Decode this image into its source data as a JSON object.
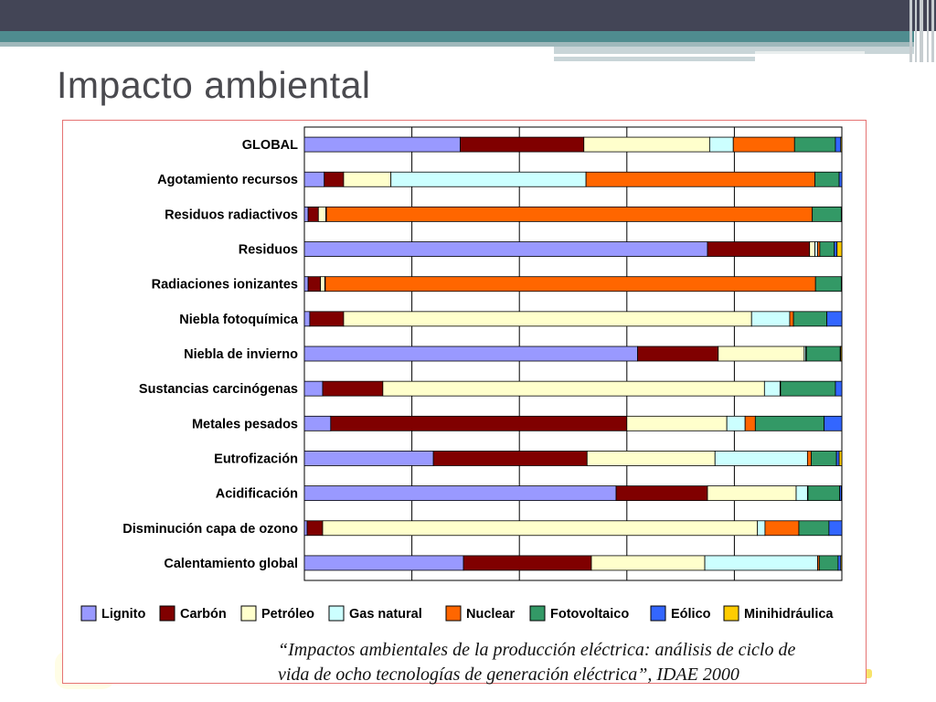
{
  "slide": {
    "title": "Impacto ambiental",
    "citation_line1": "“Impactos ambientales de la producción eléctrica: análisis de ciclo de",
    "citation_line2": "vida de ocho tecnologías de generación eléctrica”, IDAE 2000"
  },
  "chart_data": {
    "type": "bar",
    "orientation": "horizontal",
    "stacked": true,
    "normalized": "100%",
    "grid": true,
    "legend_position": "bottom",
    "categories": [
      "GLOBAL",
      "Agotamiento recursos",
      "Residuos radiactivos",
      "Residuos",
      "Radiaciones ionizantes",
      "Niebla fotoquímica",
      "Niebla de invierno",
      "Sustancias carcinógenas",
      "Metales pesados",
      "Eutrofización",
      "Acidificación",
      "Disminución capa de ozono",
      "Calentamiento global"
    ],
    "series": [
      {
        "name": "Lignito",
        "color": "#9999ff",
        "values": [
          29,
          3.7,
          0.7,
          75,
          0.7,
          1,
          62,
          3.4,
          4.9,
          24,
          58,
          0.5,
          29.6
        ]
      },
      {
        "name": "Carbón",
        "color": "#800000",
        "values": [
          23,
          3.6,
          1.9,
          19,
          2.3,
          6.3,
          15,
          11.2,
          55.1,
          28.6,
          17,
          2.9,
          23.8
        ]
      },
      {
        "name": "Petróleo",
        "color": "#ffffcc",
        "values": [
          23.4,
          8.8,
          1.4,
          1,
          0.8,
          75.9,
          16,
          71,
          18.6,
          23.8,
          16.5,
          80.9,
          21.1
        ]
      },
      {
        "name": "Gas natural",
        "color": "#ccffff",
        "values": [
          4.4,
          36.3,
          0.1,
          0.5,
          0.1,
          7.1,
          0.3,
          2.9,
          3.4,
          17.2,
          2.1,
          1.4,
          21
        ]
      },
      {
        "name": "Nuclear",
        "color": "#ff6600",
        "values": [
          11.4,
          42.6,
          90.4,
          0.4,
          91.2,
          0.7,
          0.1,
          0.1,
          1.9,
          0.7,
          0.1,
          6.3,
          0.3
        ]
      },
      {
        "name": "Fotovoltaico",
        "color": "#339966",
        "values": [
          7.6,
          4.5,
          5.4,
          2.7,
          4.8,
          6.2,
          6.3,
          10.2,
          12.8,
          4.7,
          5.9,
          5.6,
          3.5
        ]
      },
      {
        "name": "Eólico",
        "color": "#3366ff",
        "values": [
          1,
          0.5,
          0.1,
          0.5,
          0.1,
          2.8,
          0.1,
          1.2,
          3.3,
          0.5,
          0.3,
          2.4,
          0.5
        ]
      },
      {
        "name": "Minihidráulica",
        "color": "#ffcc00",
        "values": [
          0.2,
          0,
          0,
          0.9,
          0,
          0,
          0.2,
          0,
          0,
          0.5,
          0.1,
          0,
          0.2
        ]
      }
    ]
  }
}
